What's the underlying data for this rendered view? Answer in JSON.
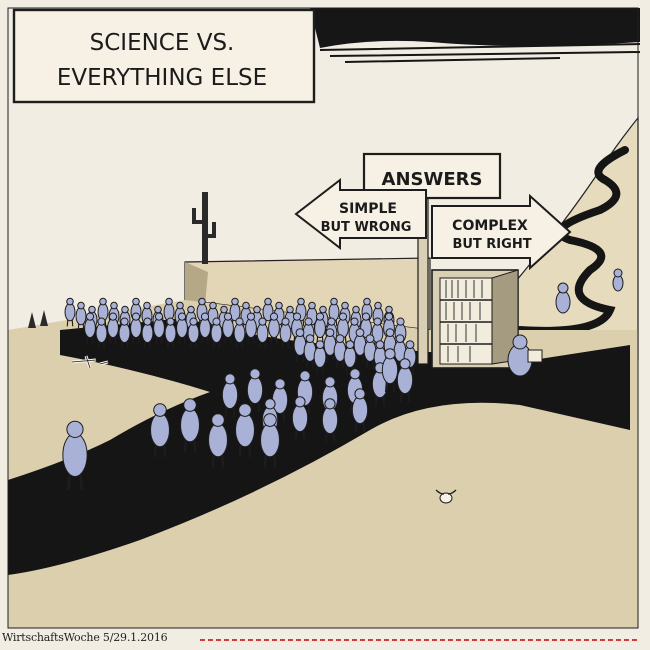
{
  "cartoon": {
    "title_line1": "SCIENCE VS.",
    "title_line2": "EVERYTHING ELSE",
    "signpost": {
      "header": "ANSWERS",
      "left_arrow_line1": "SIMPLE",
      "left_arrow_line2": "BUT WRONG",
      "right_arrow_line1": "COMPLEX",
      "right_arrow_line2": "BUT RIGHT"
    },
    "caption": "WirtschaftsWoche 5/29.1.2016"
  },
  "colors": {
    "paper": "#f1ede3",
    "sand": "#dccfae",
    "hill": "#e8dcc0",
    "road": "#151515",
    "figures": "#a9b2d6",
    "accent_red": "#d33b3b"
  }
}
